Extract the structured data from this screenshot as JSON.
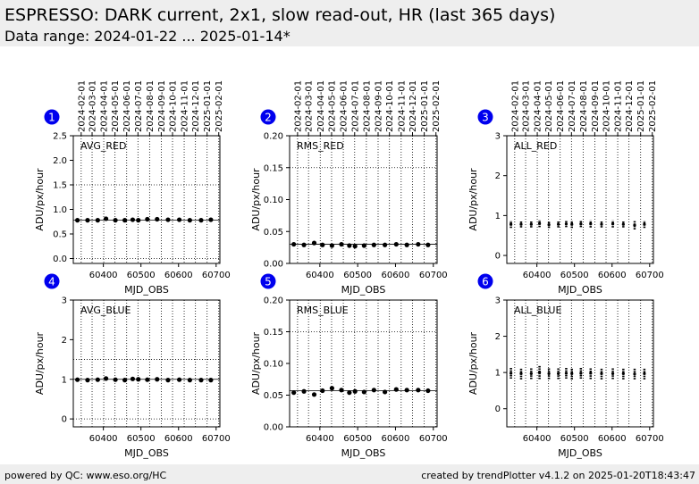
{
  "header": {
    "title": "ESPRESSO: DARK current, 2x1, slow read-out, HR (last 365 days)",
    "subtitle": "Data range: 2024-01-22 ... 2025-01-14*"
  },
  "footer": {
    "left": "powered by QC: www.eso.org/HC",
    "right": "created by trendPlotter v4.1.2 on 2025-01-20T18:43:47"
  },
  "date_ticks": {
    "labels": [
      "2024-02-01",
      "2024-03-01",
      "2024-04-01",
      "2024-05-01",
      "2024-06-01",
      "2024-07-01",
      "2024-08-01",
      "2024-09-01",
      "2024-10-01",
      "2024-11-01",
      "2024-12-01",
      "2025-01-01",
      "2025-02-01"
    ],
    "mjd": [
      60341,
      60370,
      60401,
      60431,
      60462,
      60492,
      60523,
      60554,
      60584,
      60615,
      60645,
      60676,
      60707
    ]
  },
  "colors": {
    "badge": "#0000ee",
    "points": "#000000",
    "reference_line": "#000000"
  },
  "chart_data": [
    {
      "type": "scatter",
      "badge": "1",
      "label": "AVG_RED",
      "xlabel": "MJD_OBS",
      "ylabel": "ADU/px/hour",
      "xlim": [
        60320,
        60710
      ],
      "ylim": [
        -0.1,
        2.5
      ],
      "xticks": [
        60400,
        60500,
        60600,
        60700
      ],
      "yticks": [
        0.0,
        0.5,
        1.0,
        1.5,
        2.0,
        2.5
      ],
      "ytick_labels": [
        "0.0",
        "0.5",
        "1.0",
        "1.5",
        "2.0",
        "2.5"
      ],
      "ref_line": 0.78,
      "dotted_lines": [
        0.0,
        1.5
      ],
      "x": [
        60331,
        60358,
        60385,
        60407,
        60432,
        60457,
        60478,
        60493,
        60517,
        60543,
        60572,
        60602,
        60630,
        60660,
        60686
      ],
      "y": [
        0.78,
        0.78,
        0.78,
        0.81,
        0.78,
        0.78,
        0.79,
        0.78,
        0.8,
        0.8,
        0.79,
        0.79,
        0.78,
        0.78,
        0.79
      ],
      "error": []
    },
    {
      "type": "scatter",
      "badge": "2",
      "label": "RMS_RED",
      "xlabel": "MJD_OBS",
      "ylabel": "ADU/px/hour",
      "xlim": [
        60320,
        60710
      ],
      "ylim": [
        0.0,
        0.2
      ],
      "xticks": [
        60400,
        60500,
        60600,
        60700
      ],
      "yticks": [
        0.0,
        0.05,
        0.1,
        0.15,
        0.2
      ],
      "ytick_labels": [
        "0.00",
        "0.05",
        "0.10",
        "0.15",
        "0.20"
      ],
      "ref_line": 0.03,
      "dotted_lines": [
        0.15
      ],
      "x": [
        60331,
        60358,
        60385,
        60407,
        60432,
        60457,
        60478,
        60493,
        60517,
        60543,
        60572,
        60602,
        60630,
        60660,
        60686
      ],
      "y": [
        0.03,
        0.029,
        0.032,
        0.029,
        0.028,
        0.03,
        0.028,
        0.027,
        0.028,
        0.029,
        0.029,
        0.03,
        0.029,
        0.03,
        0.029
      ],
      "error": []
    },
    {
      "type": "scatter",
      "badge": "3",
      "label": "ALL_RED",
      "xlabel": "MJD_OBS",
      "ylabel": "ADU/px/hour",
      "xlim": [
        60320,
        60710
      ],
      "ylim": [
        -0.2,
        3.0
      ],
      "xticks": [
        60400,
        60500,
        60600,
        60700
      ],
      "yticks": [
        0,
        1,
        2,
        3
      ],
      "ytick_labels": [
        "0",
        "1",
        "2",
        "3"
      ],
      "ref_line": null,
      "dotted_lines": [],
      "x": [
        60331,
        60358,
        60385,
        60407,
        60432,
        60457,
        60478,
        60493,
        60517,
        60543,
        60572,
        60602,
        60630,
        60660,
        60686
      ],
      "y": [
        0.78,
        0.78,
        0.78,
        0.8,
        0.77,
        0.78,
        0.79,
        0.78,
        0.79,
        0.79,
        0.78,
        0.79,
        0.78,
        0.76,
        0.78
      ],
      "error": [
        0.09,
        0.08,
        0.08,
        0.09,
        0.08,
        0.08,
        0.08,
        0.09,
        0.08,
        0.09,
        0.08,
        0.09,
        0.08,
        0.11,
        0.09
      ]
    },
    {
      "type": "scatter",
      "badge": "4",
      "label": "AVG_BLUE",
      "xlabel": "MJD_OBS",
      "ylabel": "ADU/px/hour",
      "xlim": [
        60320,
        60710
      ],
      "ylim": [
        -0.2,
        3.0
      ],
      "xticks": [
        60400,
        60500,
        60600,
        60700
      ],
      "yticks": [
        0,
        1,
        2,
        3
      ],
      "ytick_labels": [
        "0",
        "1",
        "2",
        "3"
      ],
      "ref_line": 1.0,
      "dotted_lines": [
        0.0,
        1.5
      ],
      "x": [
        60331,
        60358,
        60385,
        60407,
        60432,
        60457,
        60478,
        60493,
        60517,
        60543,
        60572,
        60602,
        60630,
        60660,
        60686
      ],
      "y": [
        0.99,
        0.98,
        0.99,
        1.02,
        0.99,
        0.98,
        1.01,
        1.0,
        0.99,
        1.0,
        0.98,
        0.99,
        0.98,
        0.98,
        0.98
      ],
      "error": []
    },
    {
      "type": "scatter",
      "badge": "5",
      "label": "RMS_BLUE",
      "xlabel": "MJD_OBS",
      "ylabel": "ADU/px/hour",
      "xlim": [
        60320,
        60710
      ],
      "ylim": [
        0.0,
        0.2
      ],
      "xticks": [
        60400,
        60500,
        60600,
        60700
      ],
      "yticks": [
        0.0,
        0.05,
        0.1,
        0.15,
        0.2
      ],
      "ytick_labels": [
        "0.00",
        "0.05",
        "0.10",
        "0.15",
        "0.20"
      ],
      "ref_line": 0.057,
      "dotted_lines": [
        0.15
      ],
      "x": [
        60331,
        60358,
        60385,
        60407,
        60432,
        60457,
        60478,
        60493,
        60517,
        60543,
        60572,
        60602,
        60630,
        60660,
        60686
      ],
      "y": [
        0.054,
        0.056,
        0.051,
        0.057,
        0.061,
        0.058,
        0.054,
        0.056,
        0.055,
        0.058,
        0.055,
        0.059,
        0.058,
        0.058,
        0.057
      ],
      "error": []
    },
    {
      "type": "scatter",
      "badge": "6",
      "label": "ALL_BLUE",
      "xlabel": "MJD_OBS",
      "ylabel": "ADU/px/hour",
      "xlim": [
        60320,
        60710
      ],
      "ylim": [
        -0.5,
        3.0
      ],
      "xticks": [
        60400,
        60500,
        60600,
        60700
      ],
      "yticks": [
        0,
        1,
        2,
        3
      ],
      "ytick_labels": [
        "0",
        "1",
        "2",
        "3"
      ],
      "ref_line": null,
      "dotted_lines": [],
      "x": [
        60331,
        60358,
        60385,
        60407,
        60432,
        60457,
        60478,
        60493,
        60517,
        60543,
        60572,
        60602,
        60630,
        60660,
        60686
      ],
      "y": [
        0.98,
        0.97,
        0.97,
        1.0,
        0.97,
        0.97,
        0.98,
        0.97,
        0.98,
        0.98,
        0.97,
        0.97,
        0.97,
        0.96,
        0.97
      ],
      "error": [
        0.15,
        0.16,
        0.15,
        0.18,
        0.15,
        0.15,
        0.15,
        0.16,
        0.15,
        0.16,
        0.16,
        0.15,
        0.16,
        0.15,
        0.16
      ]
    }
  ]
}
